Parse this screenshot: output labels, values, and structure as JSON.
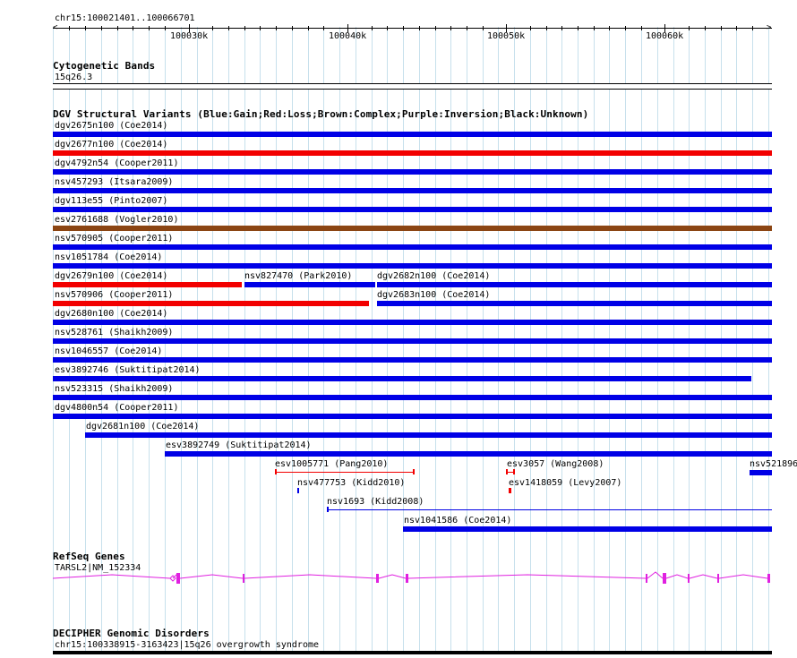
{
  "ruler": {
    "coords": "chr15:100021401..100066701",
    "ticks": [
      "100030k",
      "100040k",
      "100050k",
      "100060k"
    ]
  },
  "cytobands": {
    "title": "Cytogenetic Bands",
    "band": "15q26.3"
  },
  "dgv": {
    "title": "DGV Structural Variants (Blue:Gain;Red:Loss;Brown:Complex;Purple:Inversion;Black:Unknown)",
    "colors": {
      "gain": "#0000e6",
      "loss": "#f20000",
      "complex": "#8b4513"
    },
    "labels": {
      "r1": "dgv2675n100 (Coe2014)",
      "r2": "dgv2677n100 (Coe2014)",
      "r3": "dgv4792n54 (Cooper2011)",
      "r4": "nsv457293 (Itsara2009)",
      "r5": "dgv113e55 (Pinto2007)",
      "r6": "esv2761688 (Vogler2010)",
      "r7": "nsv570905 (Cooper2011)",
      "r8": "nsv1051784 (Coe2014)",
      "r9a": "dgv2679n100 (Coe2014)",
      "r9b": "nsv827470 (Park2010)",
      "r9c": "dgv2682n100 (Coe2014)",
      "r10a": "nsv570906 (Cooper2011)",
      "r10b": "dgv2683n100 (Coe2014)",
      "r11": "dgv2680n100 (Coe2014)",
      "r12": "nsv528761 (Shaikh2009)",
      "r13": "nsv1046557 (Coe2014)",
      "r14": "esv3892746 (Suktitipat2014)",
      "r15": "nsv523315 (Shaikh2009)",
      "r16": "dgv4800n54 (Cooper2011)",
      "r17": "dgv2681n100 (Coe2014)",
      "r18": "esv3892749 (Suktitipat2014)",
      "r19a": "esv1005771 (Pang2010)",
      "r19b": "esv3057 (Wang2008)",
      "r19c": "nsv521896",
      "r20a": "nsv477753 (Kidd2010)",
      "r20b": "esv1418059 (Levy2007)",
      "r21": "nsv1693 (Kidd2008)",
      "r22": "nsv1041586 (Coe2014)"
    }
  },
  "refseq": {
    "title": "RefSeq Genes",
    "gene": "TARSL2|NM_152334",
    "color": "#e020e0"
  },
  "decipher": {
    "title": "DECIPHER Genomic Disorders",
    "entry": "chr15:100338915-3163423|15q26 overgrowth syndrome"
  }
}
